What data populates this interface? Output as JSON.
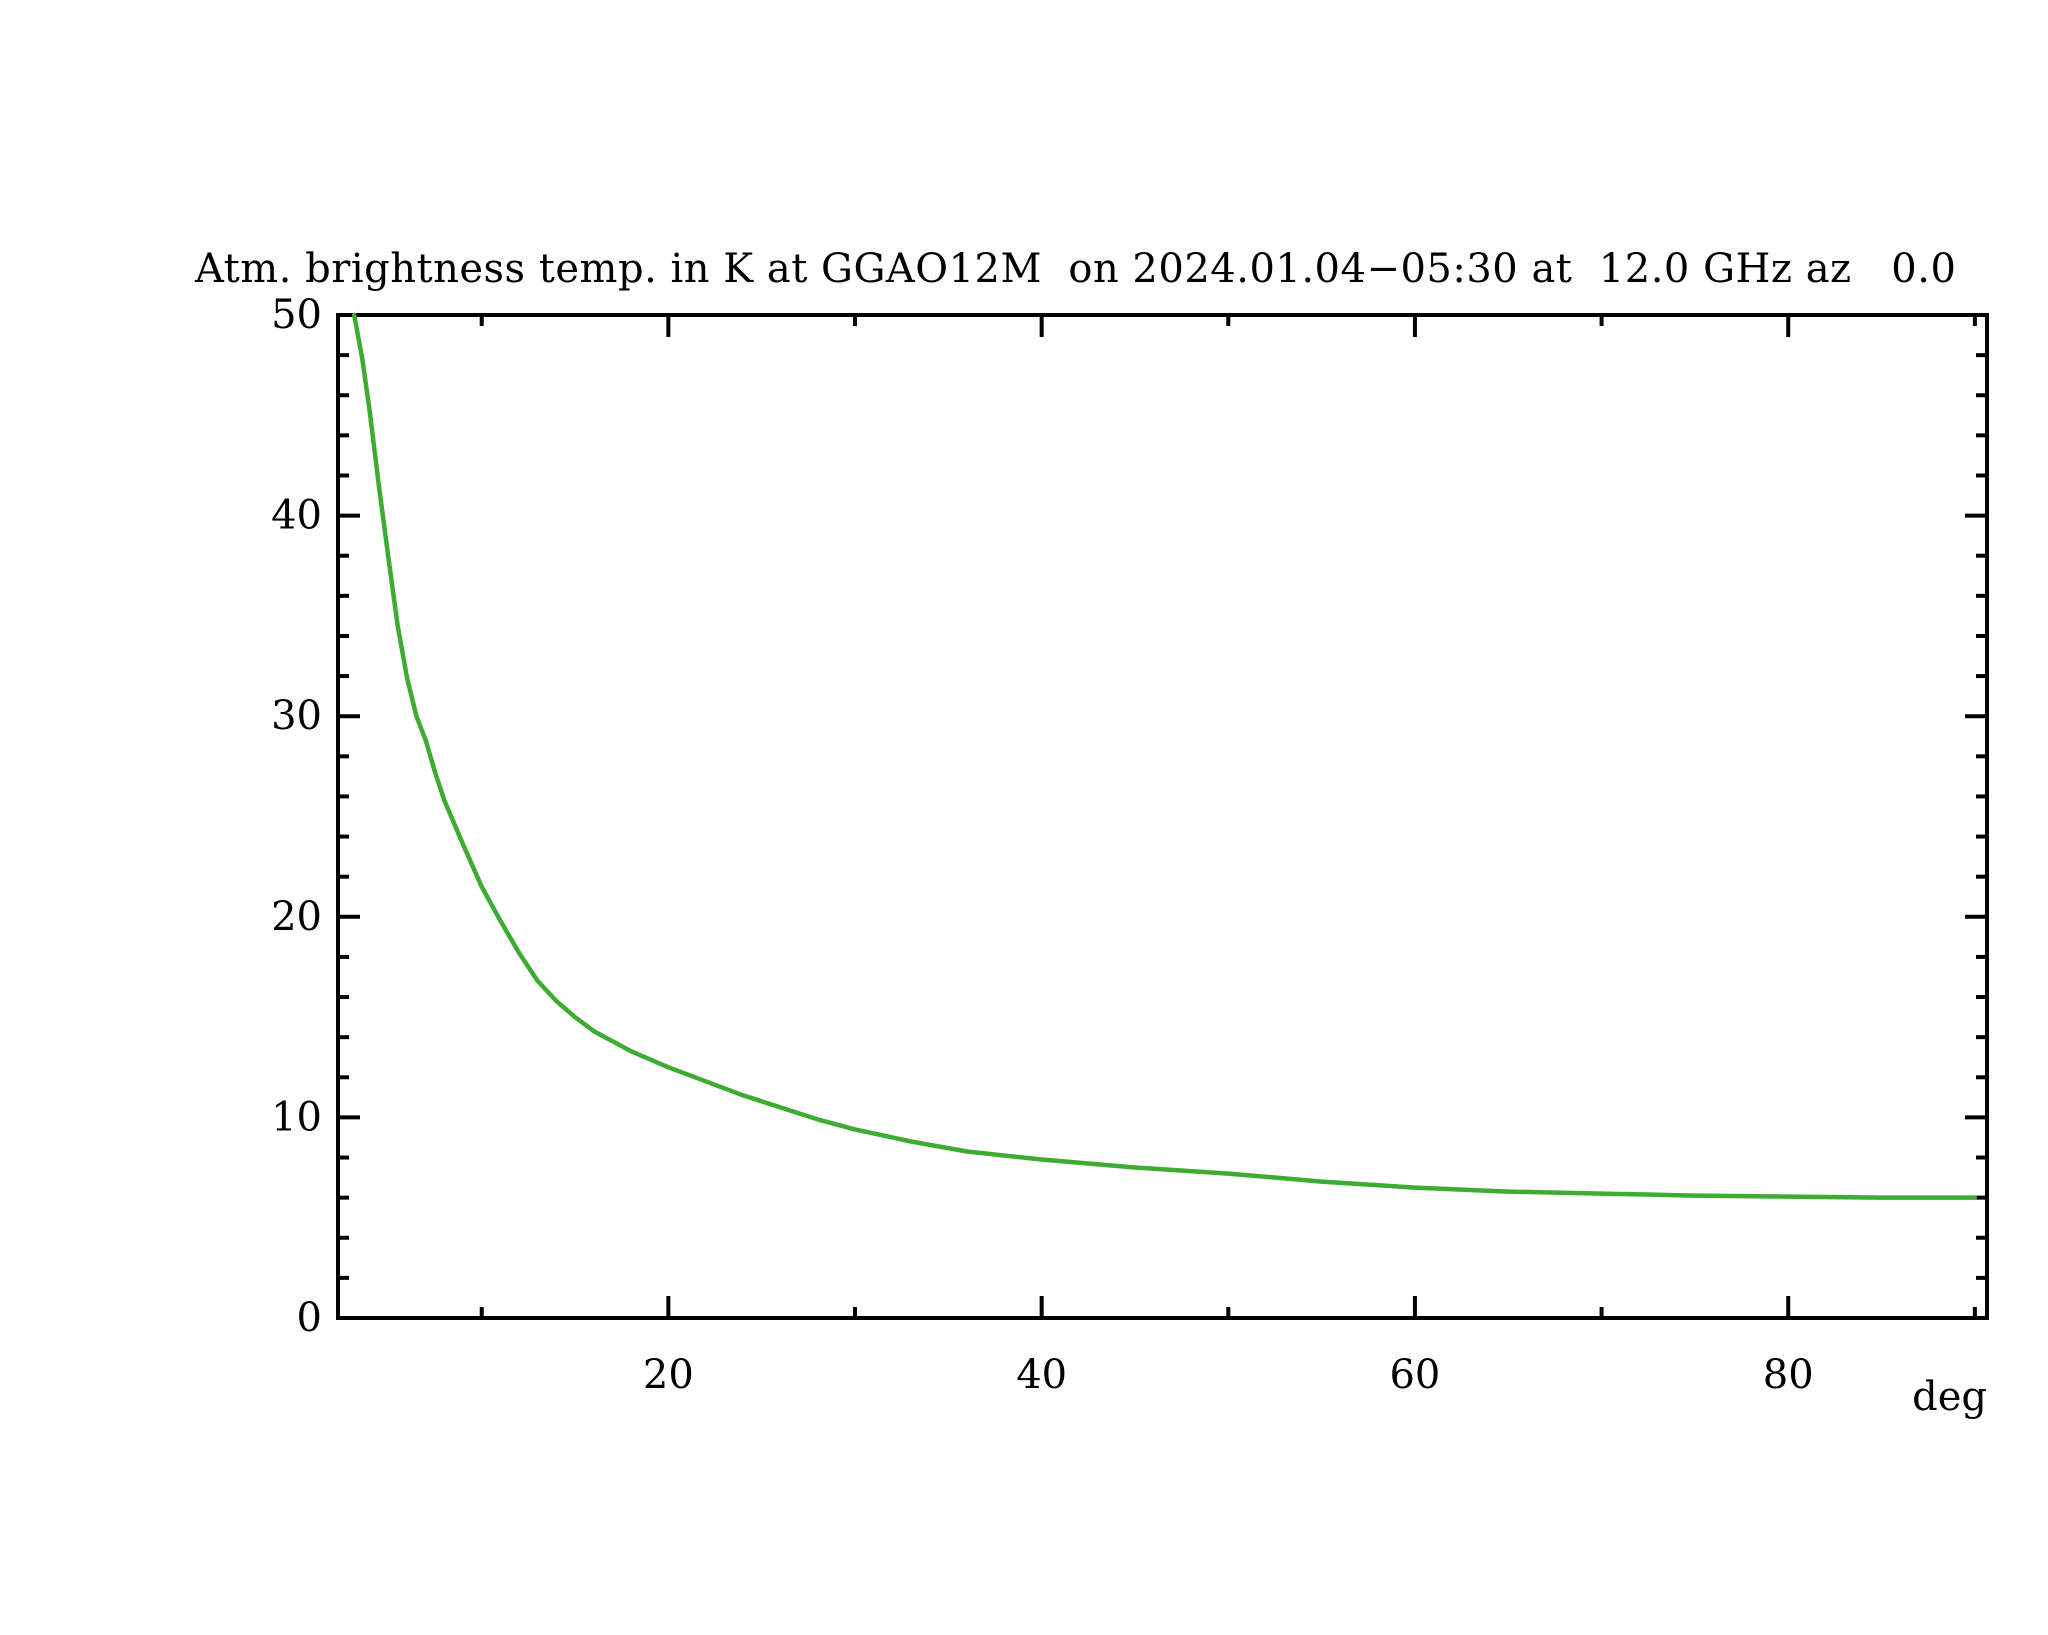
{
  "figure": {
    "background": "#ffffff",
    "text_color": "#000000"
  },
  "chart_data": {
    "type": "line",
    "title": "Atm. brightness temp. in K at GGAO12M  on 2024.01.04−05:30 at  12.0 GHz az   0.0",
    "xlabel": "deg",
    "ylabel": "",
    "xlim": [
      2.3,
      90.65
    ],
    "ylim": [
      0,
      50
    ],
    "grid": false,
    "legend": "none",
    "x_major_ticks": [
      20,
      40,
      60,
      80
    ],
    "x_major_tick_labels": [
      "20",
      "40",
      "60",
      "80"
    ],
    "x_minor_ticks": [
      10,
      30,
      50,
      70,
      90
    ],
    "y_major_ticks": [
      0,
      10,
      20,
      30,
      40,
      50
    ],
    "y_major_tick_labels": [
      "0",
      "10",
      "20",
      "30",
      "40",
      "50"
    ],
    "y_minor_tick_step": 2,
    "series": [
      {
        "name": "atmospheric-brightness-temperature",
        "color": "#3eab33",
        "x": [
          3.17,
          3.6,
          4.0,
          4.5,
          5.0,
          5.5,
          6.0,
          6.5,
          7.0,
          7.5,
          8.0,
          9.0,
          10.0,
          11.0,
          12.0,
          13.0,
          14.0,
          15.0,
          16.0,
          18.0,
          20.0,
          22.0,
          24.0,
          26.0,
          28.0,
          30.0,
          33.0,
          36.0,
          40.0,
          45.0,
          50.0,
          55.0,
          60.0,
          65.0,
          70.0,
          75.0,
          80.0,
          85.0,
          90.0
        ],
        "y": [
          50.0,
          47.8,
          45.2,
          41.4,
          37.9,
          34.5,
          31.9,
          30.0,
          28.8,
          27.2,
          25.8,
          23.6,
          21.5,
          19.8,
          18.2,
          16.8,
          15.8,
          15.0,
          14.3,
          13.3,
          12.5,
          11.8,
          11.1,
          10.5,
          9.9,
          9.4,
          8.8,
          8.3,
          7.9,
          7.5,
          7.2,
          6.8,
          6.5,
          6.3,
          6.2,
          6.1,
          6.05,
          6.0,
          6.0
        ]
      }
    ]
  }
}
